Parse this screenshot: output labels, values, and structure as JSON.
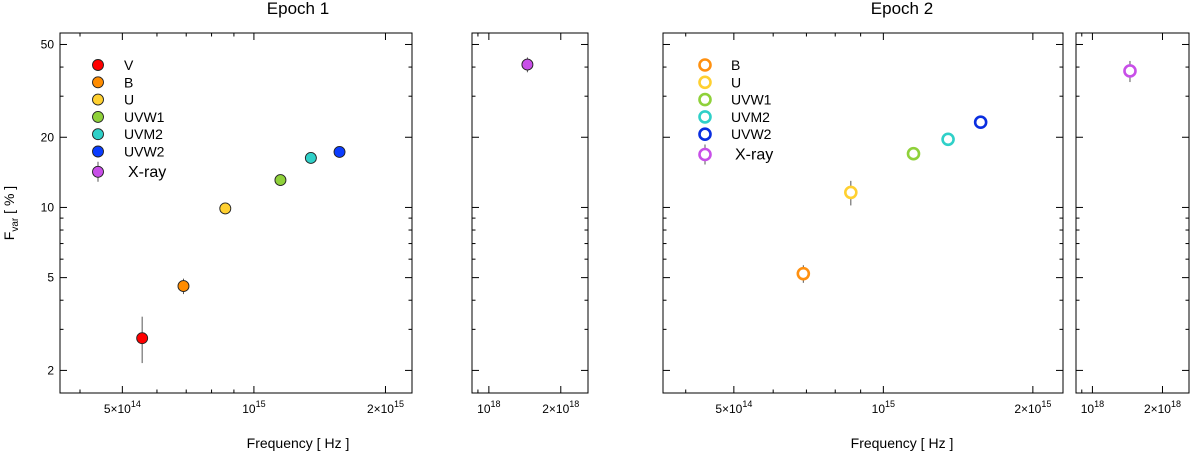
{
  "chart_data": [
    {
      "type": "scatter",
      "title": "Epoch 1",
      "xlabel": "Frequency [ Hz ]",
      "ylabel_main": "F",
      "ylabel_sub": "var",
      "ylabel_unit": " [ % ]",
      "yscale": "log",
      "ylim": [
        1.6,
        56
      ],
      "yticks": [
        2,
        5,
        10,
        20,
        50
      ],
      "yticklabels": [
        "2",
        "5",
        "10",
        "20",
        "50"
      ],
      "optical_panel": {
        "xscale": "log",
        "xlim": [
          360000000000000.0,
          2300000000000000.0
        ],
        "xticklabels": [
          {
            "base": "5×10",
            "exp": "14",
            "value": 500000000000000.0
          },
          {
            "base": "10",
            "exp": "15",
            "value": 1000000000000000.0
          },
          {
            "base": "2×10",
            "exp": "15",
            "value": 2000000000000000.0
          }
        ]
      },
      "xray_panel": {
        "xscale": "log",
        "xlim": [
          8.5e+17,
          2.6e+18
        ],
        "xticklabels": [
          {
            "base": "10",
            "exp": "18",
            "value": 1e+18
          },
          {
            "base": "2×10",
            "exp": "18",
            "value": 2e+18
          }
        ]
      },
      "marker_style": "filled",
      "legend": [
        {
          "label": "V",
          "color": "#ff0000"
        },
        {
          "label": "B",
          "color": "#ff8c00"
        },
        {
          "label": "U",
          "color": "#ffd030"
        },
        {
          "label": "UVW1",
          "color": "#8fd13a"
        },
        {
          "label": "UVM2",
          "color": "#2fd0c8"
        },
        {
          "label": "UVW2",
          "color": "#0a3cff"
        },
        {
          "label": "X-ray",
          "color": "#c84fe8"
        }
      ],
      "series": [
        {
          "name": "V",
          "panel": "optical",
          "x": 555000000000000.0,
          "y": 2.75,
          "err_low": 0.6,
          "err_high": 0.65,
          "color": "#ff0000"
        },
        {
          "name": "B",
          "panel": "optical",
          "x": 690000000000000.0,
          "y": 4.6,
          "err_low": 0.35,
          "err_high": 0.35,
          "color": "#ff8c00"
        },
        {
          "name": "U",
          "panel": "optical",
          "x": 860000000000000.0,
          "y": 9.9,
          "err_low": 0.3,
          "err_high": 0.3,
          "color": "#ffd030"
        },
        {
          "name": "UVW1",
          "panel": "optical",
          "x": 1150000000000000.0,
          "y": 13.1,
          "err_low": 0.3,
          "err_high": 0.3,
          "color": "#8fd13a"
        },
        {
          "name": "UVM2",
          "panel": "optical",
          "x": 1350000000000000.0,
          "y": 16.3,
          "err_low": 0.3,
          "err_high": 0.3,
          "color": "#2fd0c8"
        },
        {
          "name": "UVW2",
          "panel": "optical",
          "x": 1570000000000000.0,
          "y": 17.3,
          "err_low": 0.3,
          "err_high": 0.3,
          "color": "#0a3cff"
        },
        {
          "name": "X-ray",
          "panel": "xray",
          "x": 1.45e+18,
          "y": 41,
          "err_low": 3,
          "err_high": 3,
          "color": "#c84fe8"
        }
      ]
    },
    {
      "type": "scatter",
      "title": "Epoch 2",
      "xlabel": "Frequency [ Hz ]",
      "yscale": "log",
      "ylim": [
        1.6,
        56
      ],
      "yticks": [
        2,
        5,
        10,
        20,
        50
      ],
      "optical_panel": {
        "xscale": "log",
        "xlim": [
          360000000000000.0,
          2300000000000000.0
        ],
        "xticklabels": [
          {
            "base": "5×10",
            "exp": "14",
            "value": 500000000000000.0
          },
          {
            "base": "10",
            "exp": "15",
            "value": 1000000000000000.0
          },
          {
            "base": "2×10",
            "exp": "15",
            "value": 2000000000000000.0
          }
        ]
      },
      "xray_panel": {
        "xscale": "log",
        "xlim": [
          8.5e+17,
          2.6e+18
        ],
        "xticklabels": [
          {
            "base": "10",
            "exp": "18",
            "value": 1e+18
          },
          {
            "base": "2×10",
            "exp": "18",
            "value": 2e+18
          }
        ]
      },
      "marker_style": "open",
      "legend": [
        {
          "label": "B",
          "color": "#ff9010"
        },
        {
          "label": "U",
          "color": "#ffd030"
        },
        {
          "label": "UVW1",
          "color": "#8fd13a"
        },
        {
          "label": "UVM2",
          "color": "#2fd0c8"
        },
        {
          "label": "UVW2",
          "color": "#0a2ee0"
        },
        {
          "label": "X-ray",
          "color": "#c84fe8"
        }
      ],
      "series": [
        {
          "name": "B",
          "panel": "optical",
          "x": 690000000000000.0,
          "y": 5.2,
          "err_low": 0.45,
          "err_high": 0.45,
          "color": "#ff9010"
        },
        {
          "name": "U",
          "panel": "optical",
          "x": 860000000000000.0,
          "y": 11.6,
          "err_low": 1.4,
          "err_high": 1.4,
          "color": "#ffd030"
        },
        {
          "name": "UVW1",
          "panel": "optical",
          "x": 1150000000000000.0,
          "y": 17.0,
          "err_low": 0.4,
          "err_high": 0.4,
          "color": "#8fd13a"
        },
        {
          "name": "UVM2",
          "panel": "optical",
          "x": 1350000000000000.0,
          "y": 19.6,
          "err_low": 0.4,
          "err_high": 0.4,
          "color": "#2fd0c8"
        },
        {
          "name": "UVW2",
          "panel": "optical",
          "x": 1570000000000000.0,
          "y": 23.2,
          "err_low": 0.4,
          "err_high": 0.4,
          "color": "#0a2ee0"
        },
        {
          "name": "X-ray",
          "panel": "xray",
          "x": 1.45e+18,
          "y": 38.5,
          "err_low": 4,
          "err_high": 4,
          "color": "#c84fe8"
        }
      ]
    }
  ]
}
